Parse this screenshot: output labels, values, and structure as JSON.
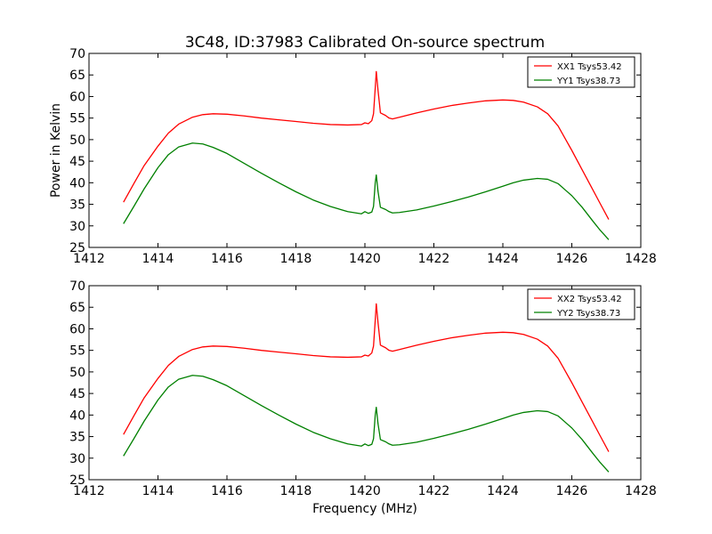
{
  "chart_data": [
    {
      "type": "line",
      "title": "3C48, ID:37983 Calibrated On-source spectrum",
      "xlabel": "",
      "ylabel": "Power in Kelvin",
      "xlim": [
        1412,
        1428
      ],
      "ylim": [
        25,
        70
      ],
      "xticks": [
        1412,
        1414,
        1416,
        1418,
        1420,
        1422,
        1424,
        1426,
        1428
      ],
      "yticks": [
        25,
        30,
        35,
        40,
        45,
        50,
        55,
        60,
        65,
        70
      ],
      "legend": "top-right",
      "grid": false,
      "series": [
        {
          "name": "XX1 Tsys53.42",
          "color": "#ff0000",
          "x": [
            1413.0,
            1413.3,
            1413.6,
            1414.0,
            1414.3,
            1414.6,
            1415.0,
            1415.3,
            1415.6,
            1416.0,
            1416.5,
            1417.0,
            1417.5,
            1418.0,
            1418.5,
            1419.0,
            1419.5,
            1419.9,
            1420.0,
            1420.1,
            1420.2,
            1420.25,
            1420.3,
            1420.33,
            1420.38,
            1420.45,
            1420.6,
            1420.7,
            1420.8,
            1421.0,
            1421.5,
            1422.0,
            1422.5,
            1423.0,
            1423.5,
            1424.0,
            1424.3,
            1424.6,
            1425.0,
            1425.3,
            1425.6,
            1426.0,
            1426.3,
            1426.6,
            1426.8,
            1427.07
          ],
          "y": [
            35.5,
            39.8,
            44.0,
            48.5,
            51.5,
            53.6,
            55.2,
            55.8,
            56.0,
            55.9,
            55.5,
            55.0,
            54.6,
            54.2,
            53.8,
            53.5,
            53.4,
            53.5,
            53.9,
            53.7,
            54.4,
            56.0,
            62.0,
            65.8,
            61.5,
            56.2,
            55.6,
            55.0,
            54.8,
            55.2,
            56.2,
            57.1,
            57.9,
            58.5,
            59.0,
            59.2,
            59.1,
            58.7,
            57.6,
            56.0,
            53.2,
            47.5,
            43.0,
            38.5,
            35.5,
            31.5
          ]
        },
        {
          "name": "YY1 Tsys38.73",
          "color": "#008000",
          "x": [
            1413.0,
            1413.3,
            1413.6,
            1414.0,
            1414.3,
            1414.6,
            1415.0,
            1415.3,
            1415.6,
            1416.0,
            1416.5,
            1417.0,
            1417.5,
            1418.0,
            1418.5,
            1419.0,
            1419.5,
            1419.9,
            1420.0,
            1420.1,
            1420.2,
            1420.25,
            1420.3,
            1420.33,
            1420.38,
            1420.45,
            1420.6,
            1420.7,
            1420.8,
            1421.0,
            1421.5,
            1422.0,
            1422.5,
            1423.0,
            1423.5,
            1424.0,
            1424.3,
            1424.6,
            1425.0,
            1425.3,
            1425.6,
            1426.0,
            1426.3,
            1426.6,
            1426.8,
            1427.07
          ],
          "y": [
            30.5,
            34.5,
            38.6,
            43.5,
            46.5,
            48.3,
            49.2,
            49.0,
            48.2,
            46.8,
            44.5,
            42.2,
            40.0,
            37.9,
            36.0,
            34.5,
            33.3,
            32.8,
            33.3,
            32.9,
            33.2,
            34.5,
            40.0,
            41.8,
            38.0,
            34.3,
            33.8,
            33.3,
            33.0,
            33.1,
            33.7,
            34.6,
            35.6,
            36.7,
            37.9,
            39.2,
            40.0,
            40.6,
            41.0,
            40.8,
            39.8,
            37.0,
            34.3,
            31.2,
            29.2,
            26.8
          ]
        }
      ]
    },
    {
      "type": "line",
      "title": "",
      "xlabel": "Frequency (MHz)",
      "ylabel": "",
      "xlim": [
        1412,
        1428
      ],
      "ylim": [
        25,
        70
      ],
      "xticks": [
        1412,
        1414,
        1416,
        1418,
        1420,
        1422,
        1424,
        1426,
        1428
      ],
      "yticks": [
        25,
        30,
        35,
        40,
        45,
        50,
        55,
        60,
        65,
        70
      ],
      "legend": "top-right",
      "grid": false,
      "series": [
        {
          "name": "XX2 Tsys53.42",
          "color": "#ff0000",
          "x": [
            1413.0,
            1413.3,
            1413.6,
            1414.0,
            1414.3,
            1414.6,
            1415.0,
            1415.3,
            1415.6,
            1416.0,
            1416.5,
            1417.0,
            1417.5,
            1418.0,
            1418.5,
            1419.0,
            1419.5,
            1419.9,
            1420.0,
            1420.1,
            1420.2,
            1420.25,
            1420.3,
            1420.33,
            1420.38,
            1420.45,
            1420.6,
            1420.7,
            1420.8,
            1421.0,
            1421.5,
            1422.0,
            1422.5,
            1423.0,
            1423.5,
            1424.0,
            1424.3,
            1424.6,
            1425.0,
            1425.3,
            1425.6,
            1426.0,
            1426.3,
            1426.6,
            1426.8,
            1427.07
          ],
          "y": [
            35.5,
            39.8,
            44.0,
            48.5,
            51.5,
            53.6,
            55.2,
            55.8,
            56.0,
            55.9,
            55.5,
            55.0,
            54.6,
            54.2,
            53.8,
            53.5,
            53.4,
            53.5,
            53.9,
            53.7,
            54.4,
            56.0,
            62.0,
            65.8,
            61.5,
            56.2,
            55.6,
            55.0,
            54.8,
            55.2,
            56.2,
            57.1,
            57.9,
            58.5,
            59.0,
            59.2,
            59.1,
            58.7,
            57.6,
            56.0,
            53.2,
            47.5,
            43.0,
            38.5,
            35.5,
            31.5
          ]
        },
        {
          "name": "YY2 Tsys38.73",
          "color": "#008000",
          "x": [
            1413.0,
            1413.3,
            1413.6,
            1414.0,
            1414.3,
            1414.6,
            1415.0,
            1415.3,
            1415.6,
            1416.0,
            1416.5,
            1417.0,
            1417.5,
            1418.0,
            1418.5,
            1419.0,
            1419.5,
            1419.9,
            1420.0,
            1420.1,
            1420.2,
            1420.25,
            1420.3,
            1420.33,
            1420.38,
            1420.45,
            1420.6,
            1420.7,
            1420.8,
            1421.0,
            1421.5,
            1422.0,
            1422.5,
            1423.0,
            1423.5,
            1424.0,
            1424.3,
            1424.6,
            1425.0,
            1425.3,
            1425.6,
            1426.0,
            1426.3,
            1426.6,
            1426.8,
            1427.07
          ],
          "y": [
            30.5,
            34.5,
            38.6,
            43.5,
            46.5,
            48.3,
            49.2,
            49.0,
            48.2,
            46.8,
            44.5,
            42.2,
            40.0,
            37.9,
            36.0,
            34.5,
            33.3,
            32.8,
            33.3,
            32.9,
            33.2,
            34.5,
            40.0,
            41.8,
            38.0,
            34.3,
            33.8,
            33.3,
            33.0,
            33.1,
            33.7,
            34.6,
            35.6,
            36.7,
            37.9,
            39.2,
            40.0,
            40.6,
            41.0,
            40.8,
            39.8,
            37.0,
            34.3,
            31.2,
            29.2,
            26.8
          ]
        }
      ]
    }
  ]
}
